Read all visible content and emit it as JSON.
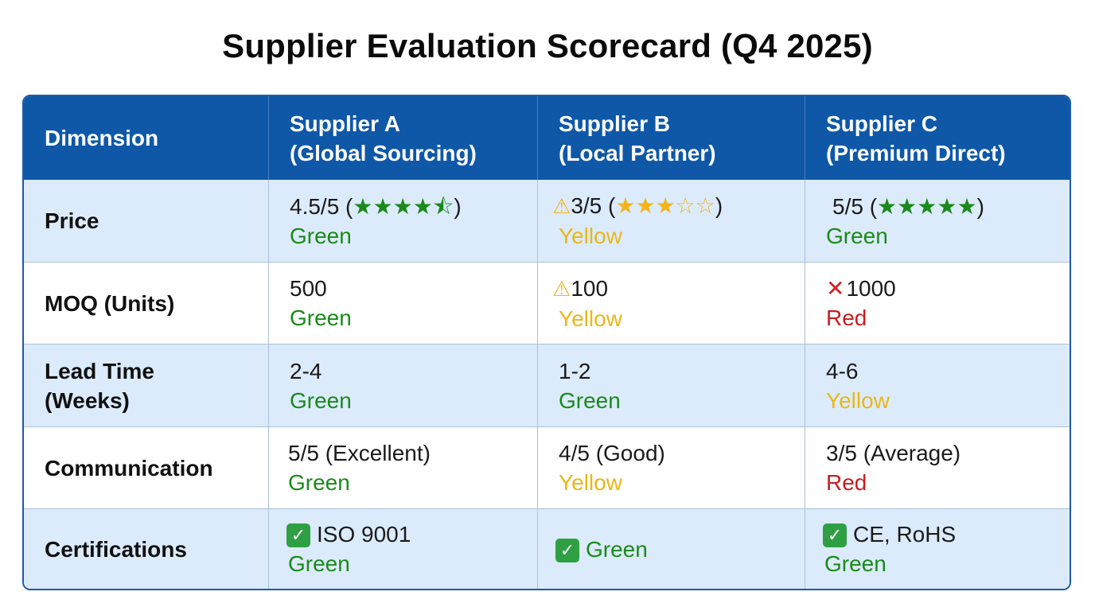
{
  "title": "Supplier Evaluation Scorecard (Q4 2025)",
  "header": {
    "dimension": "Dimension",
    "supplier_a": [
      "Supplier A",
      "(Global Sourcing)"
    ],
    "supplier_b": [
      "Supplier B",
      "(Local Partner)"
    ],
    "supplier_c": [
      "Supplier C",
      "(Premium Direct)"
    ]
  },
  "rows": {
    "price": {
      "label": "Price",
      "a": {
        "score": "4.5/5",
        "open": " (",
        "stars": "★★★★",
        "half": "⯪",
        "close": ")",
        "status": "Green"
      },
      "b": {
        "score": "3/5",
        "open": " (",
        "stars_full": "★★★",
        "stars_empty": "☆☆",
        "close": ")",
        "status": "Yellow"
      },
      "c": {
        "score": "5/5",
        "open": " (",
        "stars": "★★★★★",
        "close": ")",
        "status": "Green"
      }
    },
    "moq": {
      "label": "MOQ (Units)",
      "a": {
        "value": "500",
        "status": "Green"
      },
      "b": {
        "value": "100",
        "status": "Yellow"
      },
      "c": {
        "value": "1000",
        "status": "Red"
      }
    },
    "lead_time": {
      "label_1": "Lead Time",
      "label_2": "(Weeks)",
      "a": {
        "value": "2-4",
        "status": "Green"
      },
      "b": {
        "value": "1-2",
        "status": "Green"
      },
      "c": {
        "value": "4-6",
        "status": "Yellow"
      }
    },
    "communication": {
      "label": "Communication",
      "a": {
        "value": "5/5 (Excellent)",
        "status": "Green"
      },
      "b": {
        "value": "4/5 (Good)",
        "status": "Yellow"
      },
      "c": {
        "value": "3/5 (Average)",
        "status": "Red"
      }
    },
    "certifications": {
      "label": "Certifications",
      "a": {
        "value": "ISO 9001",
        "status": "Green"
      },
      "b": {
        "value": "Green"
      },
      "c": {
        "value": "CE, RoHS",
        "status": "Green"
      }
    }
  },
  "icons": {
    "warning": "warning-icon",
    "cross": "cross-icon",
    "check": "checkmark-icon",
    "star": "star-icon"
  },
  "colors": {
    "header_bg": "#0f58a8",
    "shaded_row": "#dcebfb",
    "green": "#1a8a1a",
    "yellow": "#e8b816",
    "red": "#c81e1e"
  }
}
